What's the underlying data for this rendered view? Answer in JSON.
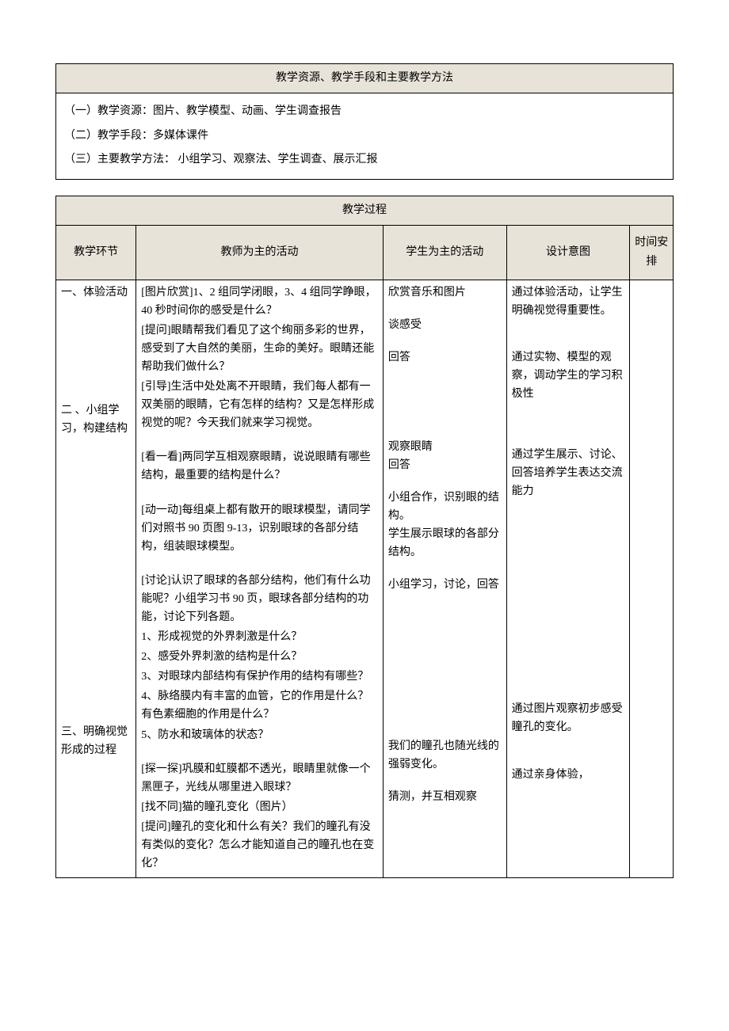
{
  "section1": {
    "title": "教学资源、教学手段和主要教学方法",
    "line1": "（一）教学资源：图片、教学模型、动画、学生调查报告",
    "line2": "（二）教学手段：多媒体课件",
    "line3": "（三）主要教学方法： 小组学习、观察法、学生调查、展示汇报"
  },
  "section2": {
    "title": "教学过程",
    "headers": {
      "col1": "教学环节",
      "col2": "教师为主的活动",
      "col3": "学生为主的活动",
      "col4": "设计意图",
      "col5": "时间安排"
    },
    "row1": {
      "stage1": "一、体验活动",
      "stage2": "二 、小组学习，构建结构",
      "stage3": "三、明确视觉形成的过程",
      "teacher": {
        "p1": "[图片欣赏]1、2 组同学闭眼，3、4 组同学睁眼，40 秒时间你的感受是什么？",
        "p2": "[提问]眼睛帮我们看见了这个绚丽多彩的世界，感受到了大自然的美丽，生命的美好。眼睛还能帮助我们做什么？",
        "p3": "[引导]生活中处处离不开眼睛，我们每人都有一双美丽的眼睛，它有怎样的结构？又是怎样形成视觉的呢？今天我们就来学习视觉。",
        "p4": "[看一看]两同学互相观察眼睛，说说眼睛有哪些结构，最重要的结构是什么？",
        "p5": "[动一动]每组桌上都有散开的眼球模型，请同学们对照书 90 页图 9-13，识别眼球的各部分结构，组装眼球模型。",
        "p6": "[讨论]认识了眼球的各部分结构，他们有什么功能呢？小组学习书 90 页，眼球各部分结构的功能，讨论下列各题。",
        "q1": "1、形成视觉的外界刺激是什么？",
        "q2": "2、感受外界刺激的结构是什么？",
        "q3": "3、对眼球内部结构有保护作用的结构有哪些？",
        "q4": "4、脉络膜内有丰富的血管，它的作用是什么？有色素细胞的作用是什么？",
        "q5": "5、防水和玻璃体的状态？",
        "p7": "[探一探]巩膜和虹膜都不透光，眼睛里就像一个黑匣子，光线从哪里进入眼球？",
        "p8": "[找不同]猫的瞳孔变化（图片）",
        "p9": "[提问]瞳孔的变化和什么有关？我们的瞳孔有没有类似的变化？怎么才能知道自己的瞳孔也在变化？"
      },
      "student": {
        "s1": "欣赏音乐和图片",
        "s2": "谈感受",
        "s3": "回答",
        "s4": "观察眼睛",
        "s5": "回答",
        "s6": "小组合作，识别眼的结构。",
        "s7": "学生展示眼球的各部分结构。",
        "s8": "小组学习，讨论，回答",
        "s9": "我们的瞳孔也随光线的强弱变化。",
        "s10": "猜测，并互相观察"
      },
      "intent": {
        "i1": "通过体验活动，让学生明确视觉得重要性。",
        "i2": "通过实物、模型的观察，调动学生的学习积极性",
        "i3": "通过学生展示、讨论、回答培养学生表达交流能力",
        "i4": "通过图片观察初步感受瞳孔的变化。",
        "i5": "通过亲身体验，"
      }
    }
  },
  "colors": {
    "header_bg": "#e8e3d9",
    "border": "#000000",
    "text": "#000000",
    "page_bg": "#ffffff"
  },
  "typography": {
    "font_family": "SimSun",
    "body_fontsize": 14,
    "line_height": 1.7
  }
}
